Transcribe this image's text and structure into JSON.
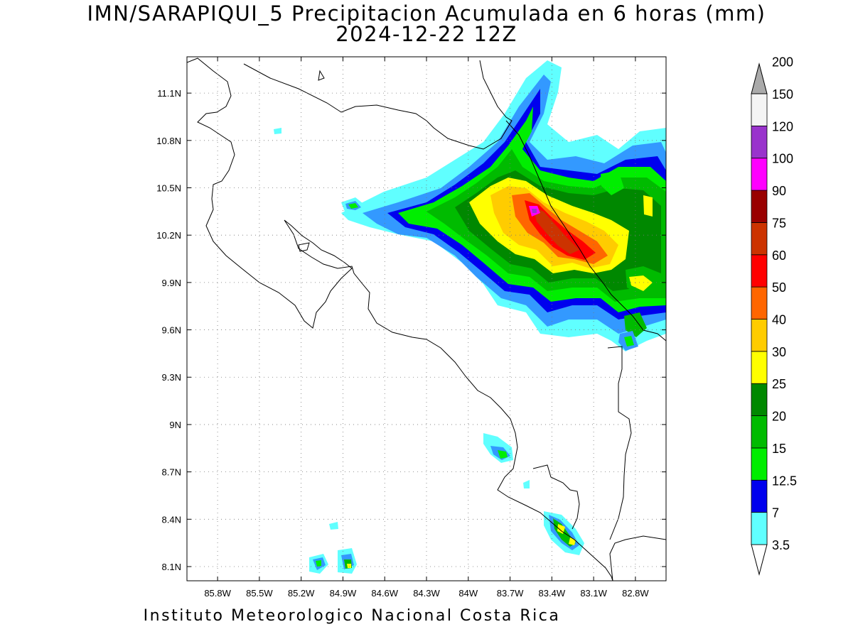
{
  "title": {
    "line1": "IMN/SARAPIQUI_5 Precipitacion Acumulada en 6 horas (mm)",
    "line2": "2024-12-22 12Z"
  },
  "footer": "Instituto Meteorologico Nacional Costa Rica",
  "map": {
    "lon_range": [
      -86.02,
      -82.58
    ],
    "lat_range": [
      8.01,
      11.33
    ],
    "x_ticks": [
      "85.8W",
      "85.5W",
      "85.2W",
      "84.9W",
      "84.6W",
      "84.3W",
      "84W",
      "83.7W",
      "83.4W",
      "83.1W",
      "82.8W"
    ],
    "x_tick_values": [
      -85.8,
      -85.5,
      -85.2,
      -84.9,
      -84.6,
      -84.3,
      -84.0,
      -83.7,
      -83.4,
      -83.1,
      -82.8
    ],
    "y_ticks": [
      "11.1N",
      "10.8N",
      "10.5N",
      "10.2N",
      "9.9N",
      "9.6N",
      "9.3N",
      "9N",
      "8.7N",
      "8.4N",
      "8.1N"
    ],
    "y_tick_values": [
      11.1,
      10.8,
      10.5,
      10.2,
      9.9,
      9.6,
      9.3,
      9.0,
      8.7,
      8.4,
      8.1
    ],
    "grid": "dotted"
  },
  "colorbar": {
    "levels": [
      "3.5",
      "7",
      "12.5",
      "15",
      "20",
      "25",
      "30",
      "40",
      "50",
      "60",
      "75",
      "90",
      "100",
      "120",
      "150",
      "200"
    ],
    "colors": [
      "#60ffff",
      "#3399ff",
      "#0000ee",
      "#00ee00",
      "#00bb00",
      "#008800",
      "#ffff00",
      "#ffcc00",
      "#ff6600",
      "#ff0000",
      "#cc3300",
      "#990000",
      "#ff00ff",
      "#9933cc",
      "#f4f4f4",
      "#aaaaaa"
    ]
  }
}
